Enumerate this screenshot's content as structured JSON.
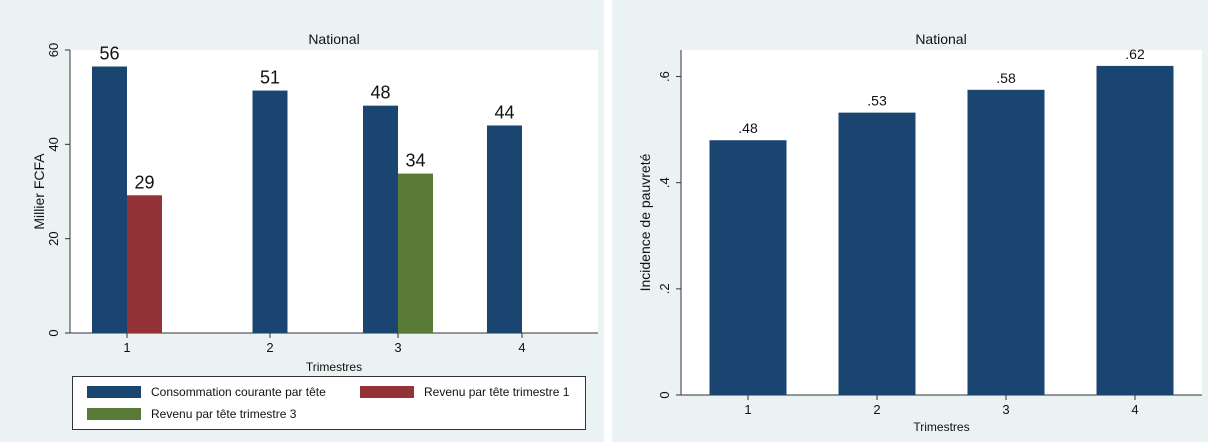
{
  "colors": {
    "panel_bg": "#eaf2f3",
    "navy": "#1b4571",
    "maroon": "#943337",
    "green": "#5a7a37"
  },
  "charts": [
    {
      "id": "left",
      "chart_data": {
        "type": "bar",
        "title": "National",
        "xlabel": "Trimestres",
        "ylabel": "Millier FCFA",
        "categories": [
          "1",
          "2",
          "3",
          "4"
        ],
        "ylim": [
          0,
          60
        ],
        "yticks": [
          0,
          20,
          40,
          60
        ],
        "ytick_labels": [
          "0",
          "20",
          "40",
          "60"
        ],
        "series": [
          {
            "name": "Consommation courante par tête",
            "color": "#1b4571",
            "values": [
              56.5,
              51.4,
              48.2,
              44.0
            ],
            "labels": [
              "56",
              "51",
              "48",
              "44"
            ]
          },
          {
            "name": "Revenu par tête trimestre 1",
            "color": "#943337",
            "values": [
              29.2,
              null,
              null,
              null
            ],
            "labels": [
              "29",
              "",
              "",
              ""
            ]
          },
          {
            "name": "Revenu par tête trimestre 3",
            "color": "#5a7a37",
            "values": [
              null,
              null,
              33.8,
              null
            ],
            "labels": [
              "",
              "",
              "34",
              ""
            ]
          }
        ],
        "legend": "bottom",
        "grid": false
      }
    },
    {
      "id": "right",
      "chart_data": {
        "type": "bar",
        "title": "National",
        "xlabel": "Trimestres",
        "ylabel": "Incidence de pauvreté",
        "categories": [
          "1",
          "2",
          "3",
          "4"
        ],
        "ylim": [
          0,
          0.65
        ],
        "yticks": [
          0,
          0.2,
          0.4,
          0.6
        ],
        "ytick_labels": [
          "0",
          ".2",
          ".4",
          ".6"
        ],
        "series": [
          {
            "name": "",
            "color": "#1b4571",
            "values": [
              0.48,
              0.532,
              0.575,
              0.62
            ],
            "labels": [
              ".48",
              ".53",
              ".58",
              ".62"
            ]
          }
        ],
        "legend": "none",
        "grid": false
      }
    }
  ],
  "legend": {
    "items": [
      {
        "label": "Consommation courante par tête",
        "color": "#1b4571"
      },
      {
        "label": "Revenu par tête trimestre 1",
        "color": "#943337"
      },
      {
        "label": "Revenu par tête trimestre 3",
        "color": "#5a7a37"
      }
    ]
  }
}
